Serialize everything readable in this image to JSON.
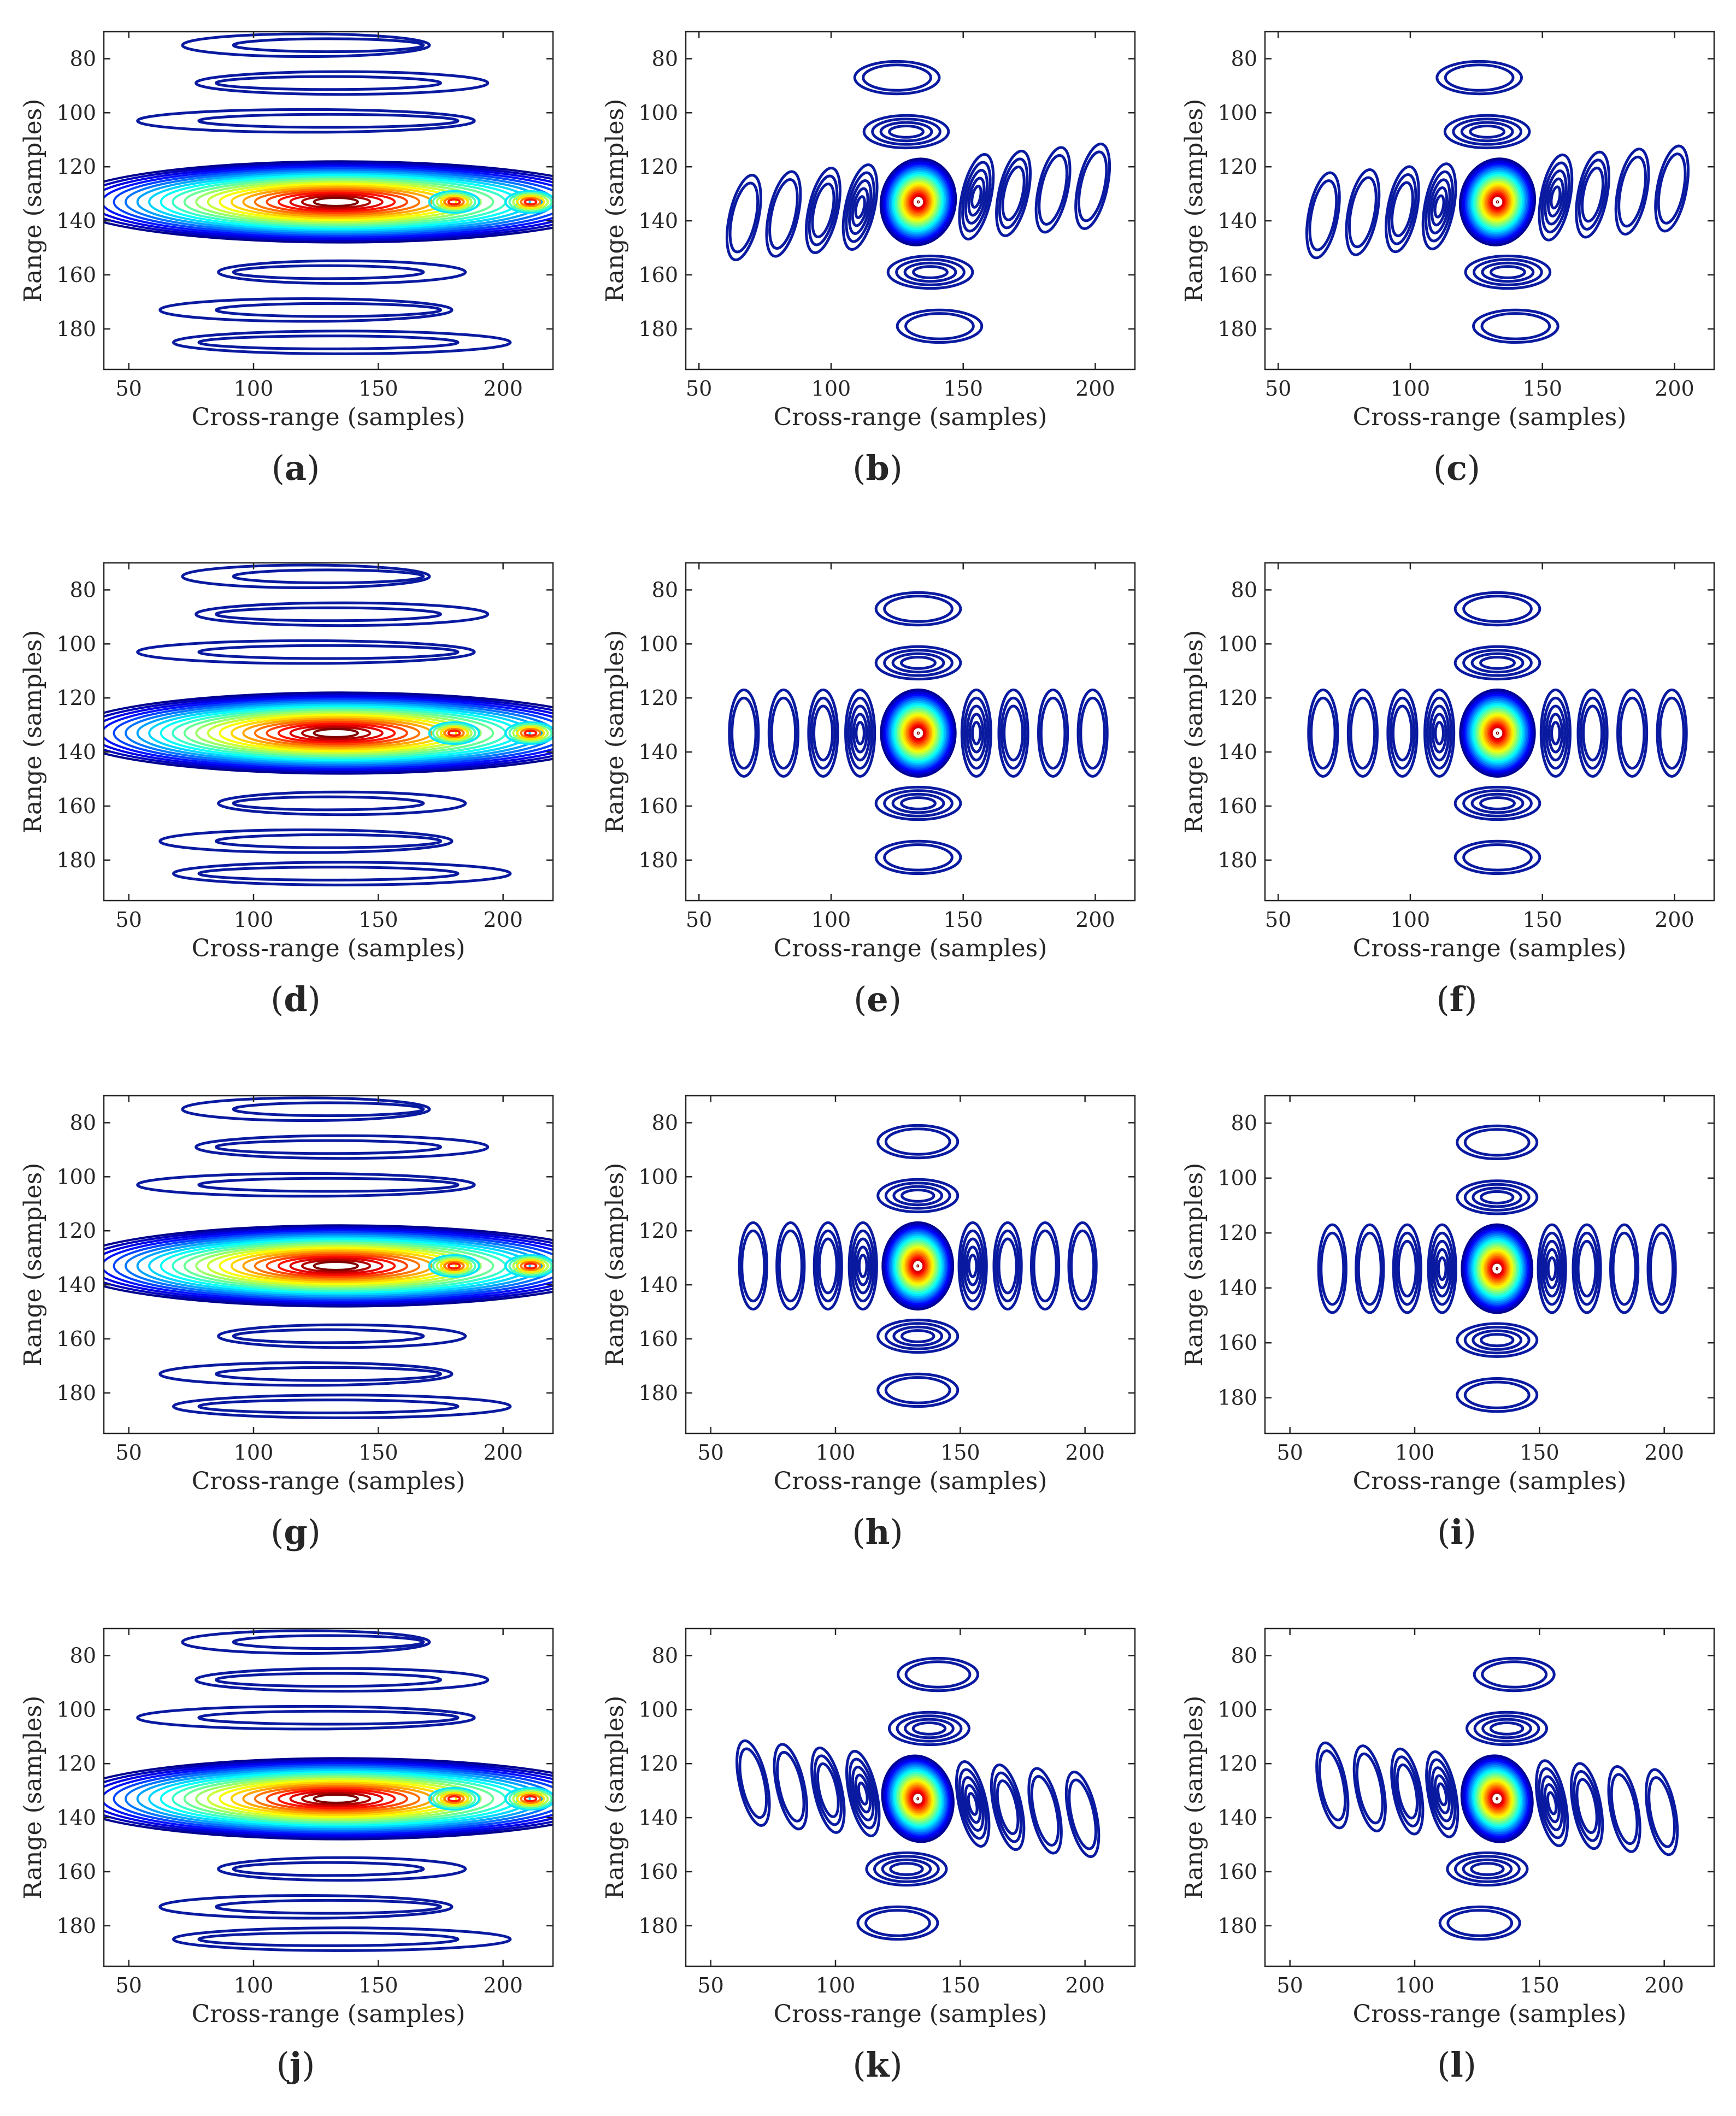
{
  "figure": {
    "description_axis": "contour plots of focused point target",
    "colormap": [
      "#00008f",
      "#0000ff",
      "#0080ff",
      "#00ffff",
      "#80ff80",
      "#ffff00",
      "#ff8000",
      "#ff0000",
      "#800000"
    ],
    "background": "#ffffff"
  },
  "chart_data": [
    {
      "type": "contour",
      "caption": "a",
      "xlabel": "Cross-range (samples)",
      "ylabel": "Range (samples)",
      "xlim": [
        40,
        220
      ],
      "ylim": [
        195,
        70
      ],
      "xticks": [
        50,
        100,
        150,
        200
      ],
      "yticks": [
        80,
        100,
        120,
        140,
        160,
        180
      ],
      "pattern": "horizontal-smear",
      "peak": [
        133,
        133
      ],
      "smear_xmin": 40,
      "tilt": 0
    },
    {
      "type": "contour",
      "caption": "b",
      "xlabel": "Cross-range (samples)",
      "ylabel": "Range (samples)",
      "xlim": [
        45,
        215
      ],
      "ylim": [
        195,
        70
      ],
      "xticks": [
        50,
        100,
        150,
        200
      ],
      "yticks": [
        80,
        100,
        120,
        140,
        160,
        180
      ],
      "pattern": "focused-cross",
      "peak": [
        133,
        133
      ],
      "tilt": 0.35
    },
    {
      "type": "contour",
      "caption": "c",
      "xlabel": "Cross-range (samples)",
      "ylabel": "Range (samples)",
      "xlim": [
        45,
        215
      ],
      "ylim": [
        195,
        70
      ],
      "xticks": [
        50,
        100,
        150,
        200
      ],
      "yticks": [
        80,
        100,
        120,
        140,
        160,
        180
      ],
      "pattern": "focused-cross",
      "peak": [
        133,
        133
      ],
      "tilt": 0.3
    },
    {
      "type": "contour",
      "caption": "d",
      "xlabel": "Cross-range (samples)",
      "ylabel": "Range (samples)",
      "xlim": [
        40,
        220
      ],
      "ylim": [
        195,
        70
      ],
      "xticks": [
        50,
        100,
        150,
        200
      ],
      "yticks": [
        80,
        100,
        120,
        140,
        160,
        180
      ],
      "pattern": "horizontal-smear",
      "peak": [
        133,
        133
      ],
      "smear_xmin": 40,
      "tilt": 0
    },
    {
      "type": "contour",
      "caption": "e",
      "xlabel": "Cross-range (samples)",
      "ylabel": "Range (samples)",
      "xlim": [
        45,
        215
      ],
      "ylim": [
        195,
        70
      ],
      "xticks": [
        50,
        100,
        150,
        200
      ],
      "yticks": [
        80,
        100,
        120,
        140,
        160,
        180
      ],
      "pattern": "focused-cross",
      "peak": [
        133,
        133
      ],
      "tilt": 0
    },
    {
      "type": "contour",
      "caption": "f",
      "xlabel": "Cross-range (samples)",
      "ylabel": "Range (samples)",
      "xlim": [
        45,
        215
      ],
      "ylim": [
        195,
        70
      ],
      "xticks": [
        50,
        100,
        150,
        200
      ],
      "yticks": [
        80,
        100,
        120,
        140,
        160,
        180
      ],
      "pattern": "focused-cross",
      "peak": [
        133,
        133
      ],
      "tilt": 0
    },
    {
      "type": "contour",
      "caption": "g",
      "xlabel": "Cross-range (samples)",
      "ylabel": "Range (samples)",
      "xlim": [
        40,
        220
      ],
      "ylim": [
        195,
        70
      ],
      "xticks": [
        50,
        100,
        150,
        200
      ],
      "yticks": [
        80,
        100,
        120,
        140,
        160,
        180
      ],
      "pattern": "horizontal-smear",
      "peak": [
        133,
        133
      ],
      "smear_xmin": 40,
      "tilt": 0
    },
    {
      "type": "contour",
      "caption": "h",
      "xlabel": "Cross-range (samples)",
      "ylabel": "Range (samples)",
      "xlim": [
        40,
        220
      ],
      "ylim": [
        195,
        70
      ],
      "xticks": [
        50,
        100,
        150,
        200
      ],
      "yticks": [
        80,
        100,
        120,
        140,
        160,
        180
      ],
      "pattern": "focused-cross",
      "peak": [
        133,
        133
      ],
      "tilt": 0
    },
    {
      "type": "contour",
      "caption": "i",
      "xlabel": "Cross-range (samples)",
      "ylabel": "Range (samples)",
      "xlim": [
        40,
        220
      ],
      "ylim": [
        193,
        70
      ],
      "xticks": [
        50,
        100,
        150,
        200
      ],
      "yticks": [
        80,
        100,
        120,
        140,
        160,
        180
      ],
      "pattern": "focused-cross",
      "peak": [
        133,
        133
      ],
      "tilt": 0
    },
    {
      "type": "contour",
      "caption": "j",
      "xlabel": "Cross-range (samples)",
      "ylabel": "Range (samples)",
      "xlim": [
        40,
        220
      ],
      "ylim": [
        195,
        70
      ],
      "xticks": [
        50,
        100,
        150,
        200
      ],
      "yticks": [
        80,
        100,
        120,
        140,
        160,
        180
      ],
      "pattern": "horizontal-smear",
      "peak": [
        133,
        133
      ],
      "smear_xmin": 40,
      "tilt": 0
    },
    {
      "type": "contour",
      "caption": "k",
      "xlabel": "Cross-range (samples)",
      "ylabel": "Range (samples)",
      "xlim": [
        40,
        220
      ],
      "ylim": [
        195,
        70
      ],
      "xticks": [
        50,
        100,
        150,
        200
      ],
      "yticks": [
        80,
        100,
        120,
        140,
        160,
        180
      ],
      "pattern": "focused-cross",
      "peak": [
        133,
        133
      ],
      "tilt": -0.35
    },
    {
      "type": "contour",
      "caption": "l",
      "xlabel": "Cross-range (samples)",
      "ylabel": "Range (samples)",
      "xlim": [
        40,
        220
      ],
      "ylim": [
        195,
        70
      ],
      "xticks": [
        50,
        100,
        150,
        200
      ],
      "yticks": [
        80,
        100,
        120,
        140,
        160,
        180
      ],
      "pattern": "focused-cross",
      "peak": [
        133,
        133
      ],
      "tilt": -0.3
    }
  ]
}
